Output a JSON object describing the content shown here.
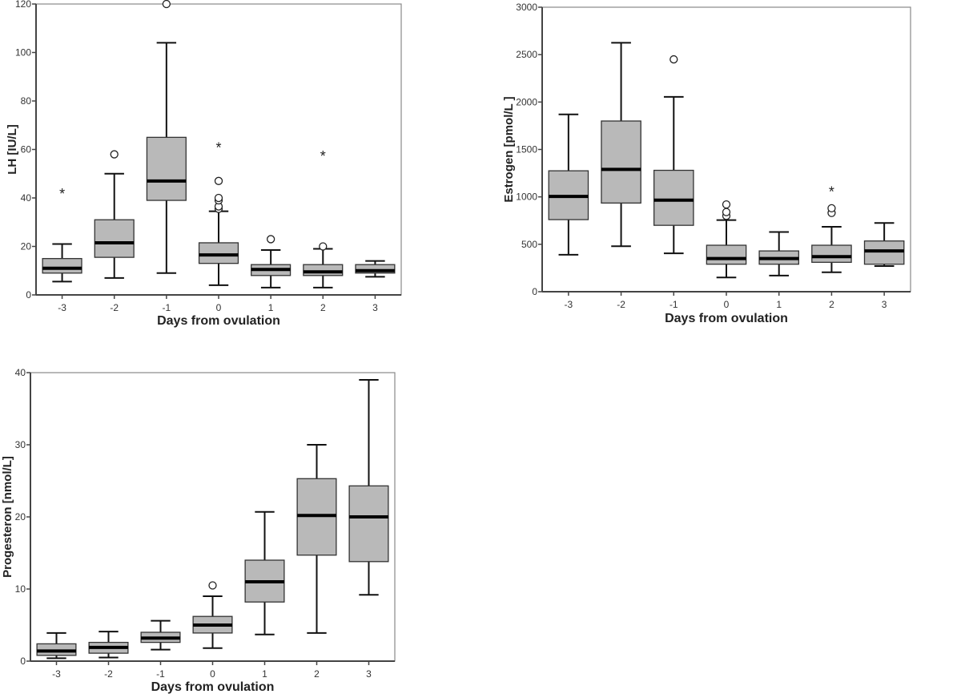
{
  "chart_data": [
    {
      "type": "box",
      "xlabel": "Days from ovulation",
      "ylabel": "LH [IU/L]",
      "ylim": [
        0,
        120
      ],
      "yticks": [
        0,
        20,
        40,
        60,
        80,
        100,
        120
      ],
      "categories": [
        "-3",
        "-2",
        "-1",
        "0",
        "1",
        "2",
        "3"
      ],
      "boxes": [
        {
          "min": 5.5,
          "q1": 9,
          "median": 11,
          "q3": 15,
          "max": 21,
          "outliers": [],
          "extremes": [
            42
          ]
        },
        {
          "min": 7,
          "q1": 15.5,
          "median": 21.5,
          "q3": 31,
          "max": 50,
          "outliers": [
            58
          ],
          "extremes": []
        },
        {
          "min": 9,
          "q1": 39,
          "median": 47,
          "q3": 65,
          "max": 104,
          "outliers": [
            120
          ],
          "extremes": []
        },
        {
          "min": 4,
          "q1": 13,
          "median": 16.5,
          "q3": 21.5,
          "max": 34.5,
          "outliers": [
            35.5,
            36.5,
            39,
            40,
            47
          ],
          "extremes": [
            61
          ]
        },
        {
          "min": 3,
          "q1": 8,
          "median": 10.5,
          "q3": 12.5,
          "max": 18.5,
          "outliers": [
            23
          ],
          "extremes": []
        },
        {
          "min": 3,
          "q1": 8,
          "median": 9.5,
          "q3": 12.5,
          "max": 19,
          "outliers": [
            20
          ],
          "extremes": [
            57.5
          ]
        },
        {
          "min": 7.5,
          "q1": 9,
          "median": 10,
          "q3": 12.5,
          "max": 14,
          "outliers": [],
          "extremes": []
        }
      ]
    },
    {
      "type": "box",
      "xlabel": "Days from ovulation",
      "ylabel": "Estrogen [pmol/L ]",
      "ylim": [
        0,
        3000
      ],
      "yticks": [
        0,
        500,
        1000,
        1500,
        2000,
        2500,
        3000
      ],
      "categories": [
        "-3",
        "-2",
        "-1",
        "0",
        "1",
        "2",
        "3"
      ],
      "boxes": [
        {
          "min": 390,
          "q1": 760,
          "median": 1005,
          "q3": 1275,
          "max": 1870,
          "outliers": [],
          "extremes": []
        },
        {
          "min": 480,
          "q1": 935,
          "median": 1290,
          "q3": 1800,
          "max": 2625,
          "outliers": [],
          "extremes": []
        },
        {
          "min": 405,
          "q1": 700,
          "median": 965,
          "q3": 1280,
          "max": 2055,
          "outliers": [
            2450
          ],
          "extremes": []
        },
        {
          "min": 150,
          "q1": 290,
          "median": 350,
          "q3": 490,
          "max": 755,
          "outliers": [
            800,
            840,
            920
          ],
          "extremes": []
        },
        {
          "min": 170,
          "q1": 290,
          "median": 350,
          "q3": 430,
          "max": 630,
          "outliers": [],
          "extremes": []
        },
        {
          "min": 205,
          "q1": 310,
          "median": 370,
          "q3": 490,
          "max": 685,
          "outliers": [
            830,
            880
          ],
          "extremes": [
            1060
          ]
        },
        {
          "min": 270,
          "q1": 290,
          "median": 430,
          "q3": 535,
          "max": 725,
          "outliers": [],
          "extremes": []
        }
      ]
    },
    {
      "type": "box",
      "xlabel": "Days from ovulation",
      "ylabel": "Progesteron [nmol/L]",
      "ylim": [
        0,
        40
      ],
      "yticks": [
        0,
        10,
        20,
        30,
        40
      ],
      "categories": [
        "-3",
        "-2",
        "-1",
        "0",
        "1",
        "2",
        "3"
      ],
      "boxes": [
        {
          "min": 0.4,
          "q1": 0.8,
          "median": 1.4,
          "q3": 2.4,
          "max": 3.9,
          "outliers": [],
          "extremes": []
        },
        {
          "min": 0.5,
          "q1": 1.1,
          "median": 1.9,
          "q3": 2.6,
          "max": 4.1,
          "outliers": [],
          "extremes": []
        },
        {
          "min": 1.6,
          "q1": 2.6,
          "median": 3.2,
          "q3": 4.0,
          "max": 5.6,
          "outliers": [],
          "extremes": []
        },
        {
          "min": 1.8,
          "q1": 3.9,
          "median": 5.0,
          "q3": 6.2,
          "max": 9.0,
          "outliers": [
            10.5
          ],
          "extremes": []
        },
        {
          "min": 3.7,
          "q1": 8.2,
          "median": 11.0,
          "q3": 14.0,
          "max": 20.7,
          "outliers": [],
          "extremes": []
        },
        {
          "min": 3.9,
          "q1": 14.7,
          "median": 20.2,
          "q3": 25.3,
          "max": 30,
          "outliers": [],
          "extremes": []
        },
        {
          "min": 9.2,
          "q1": 13.8,
          "median": 20.0,
          "q3": 24.3,
          "max": 39,
          "outliers": [],
          "extremes": []
        }
      ]
    }
  ],
  "colors": {
    "box_fill": "#b9b9b9",
    "line": "#111111",
    "frame": "#444444"
  }
}
